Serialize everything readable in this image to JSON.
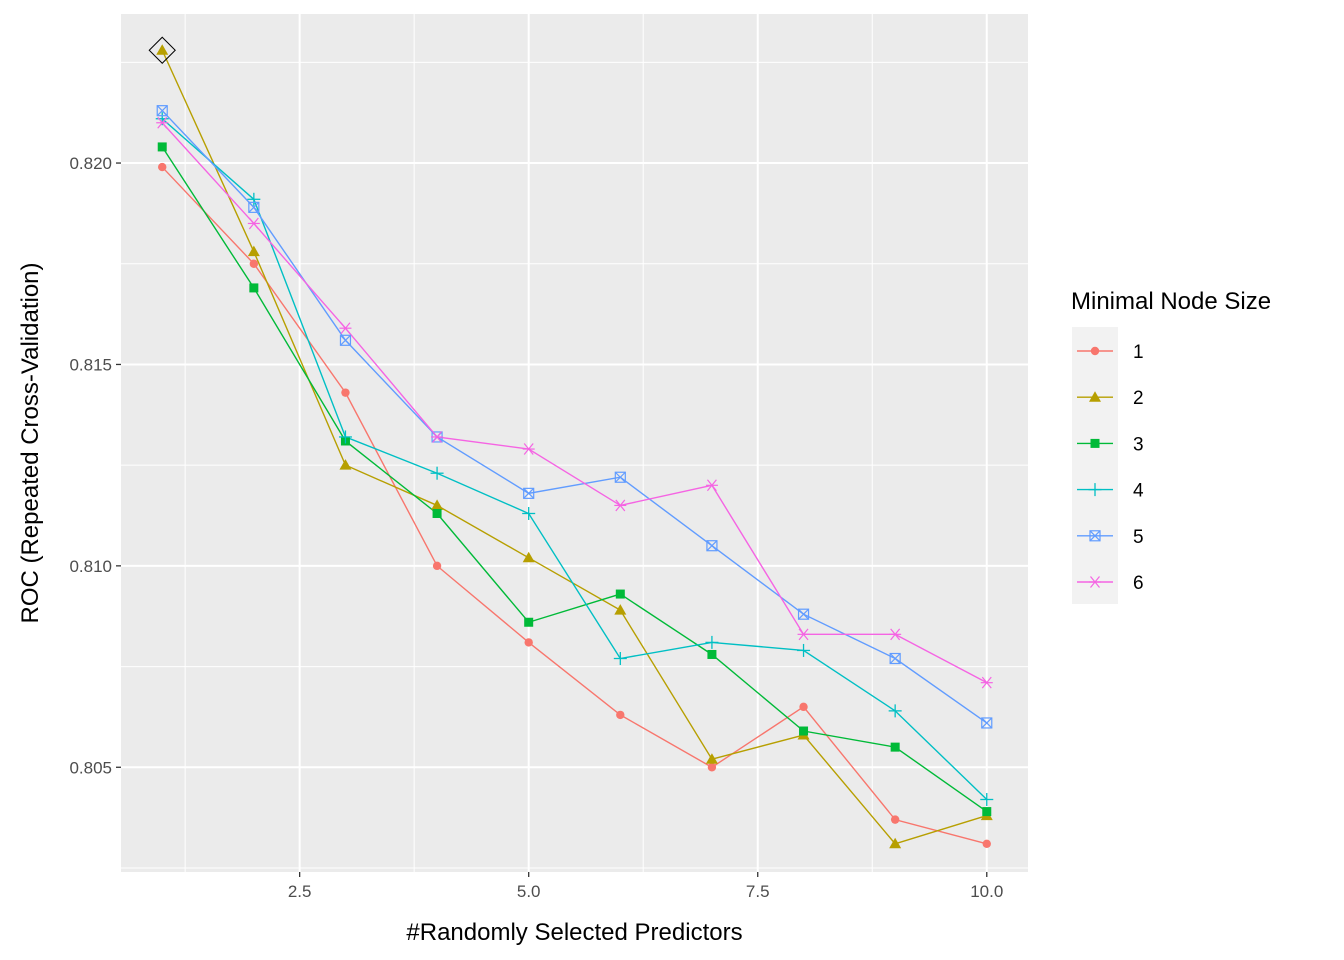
{
  "chart_data": {
    "type": "line",
    "xlabel": "#Randomly Selected Predictors",
    "ylabel": "ROC (Repeated Cross-Validation)",
    "xlim": [
      0.55,
      10.45
    ],
    "ylim": [
      0.8024,
      0.8237
    ],
    "x_ticks": [
      2.5,
      5.0,
      7.5,
      10.0
    ],
    "x_tick_labels": [
      "2.5",
      "5.0",
      "7.5",
      "10.0"
    ],
    "x_minor_ticks": [
      1.25,
      3.75,
      6.25,
      8.75
    ],
    "y_ticks": [
      0.805,
      0.81,
      0.815,
      0.82
    ],
    "y_tick_labels": [
      "0.805",
      "0.810",
      "0.815",
      "0.820"
    ],
    "y_minor_ticks": [
      0.8025,
      0.8075,
      0.8125,
      0.8175,
      0.8225
    ],
    "grid": true,
    "legend_position": "right",
    "legend_title": "Minimal Node Size",
    "x": [
      1,
      2,
      3,
      4,
      5,
      6,
      7,
      8,
      9,
      10
    ],
    "series": [
      {
        "name": "1",
        "color": "#F8766D",
        "shape": "circle",
        "values": [
          0.8199,
          0.8175,
          0.8143,
          0.81,
          0.8081,
          0.8063,
          0.805,
          0.8065,
          0.8037,
          0.8031
        ]
      },
      {
        "name": "2",
        "color": "#B79F00",
        "shape": "triangle",
        "values": [
          0.8228,
          0.8178,
          0.8125,
          0.8115,
          0.8102,
          0.8089,
          0.8052,
          0.8058,
          0.8031,
          0.8038
        ]
      },
      {
        "name": "3",
        "color": "#00BA38",
        "shape": "square",
        "values": [
          0.8204,
          0.8169,
          0.8131,
          0.8113,
          0.8086,
          0.8093,
          0.8078,
          0.8059,
          0.8055,
          0.8039
        ]
      },
      {
        "name": "4",
        "color": "#00BFC4",
        "shape": "plus",
        "values": [
          0.8211,
          0.8191,
          0.8132,
          0.8123,
          0.8113,
          0.8077,
          0.8081,
          0.8079,
          0.8064,
          0.8042
        ]
      },
      {
        "name": "5",
        "color": "#619CFF",
        "shape": "square-cross",
        "values": [
          0.8213,
          0.8189,
          0.8156,
          0.8132,
          0.8118,
          0.8122,
          0.8105,
          0.8088,
          0.8077,
          0.8061
        ]
      },
      {
        "name": "6",
        "color": "#F564E3",
        "shape": "asterisk",
        "values": [
          0.821,
          0.8185,
          0.8159,
          0.8132,
          0.8129,
          0.8115,
          0.812,
          0.8083,
          0.8083,
          0.8071
        ]
      }
    ],
    "best": {
      "x": 1,
      "y": 0.8228,
      "shape": "diamond"
    }
  }
}
